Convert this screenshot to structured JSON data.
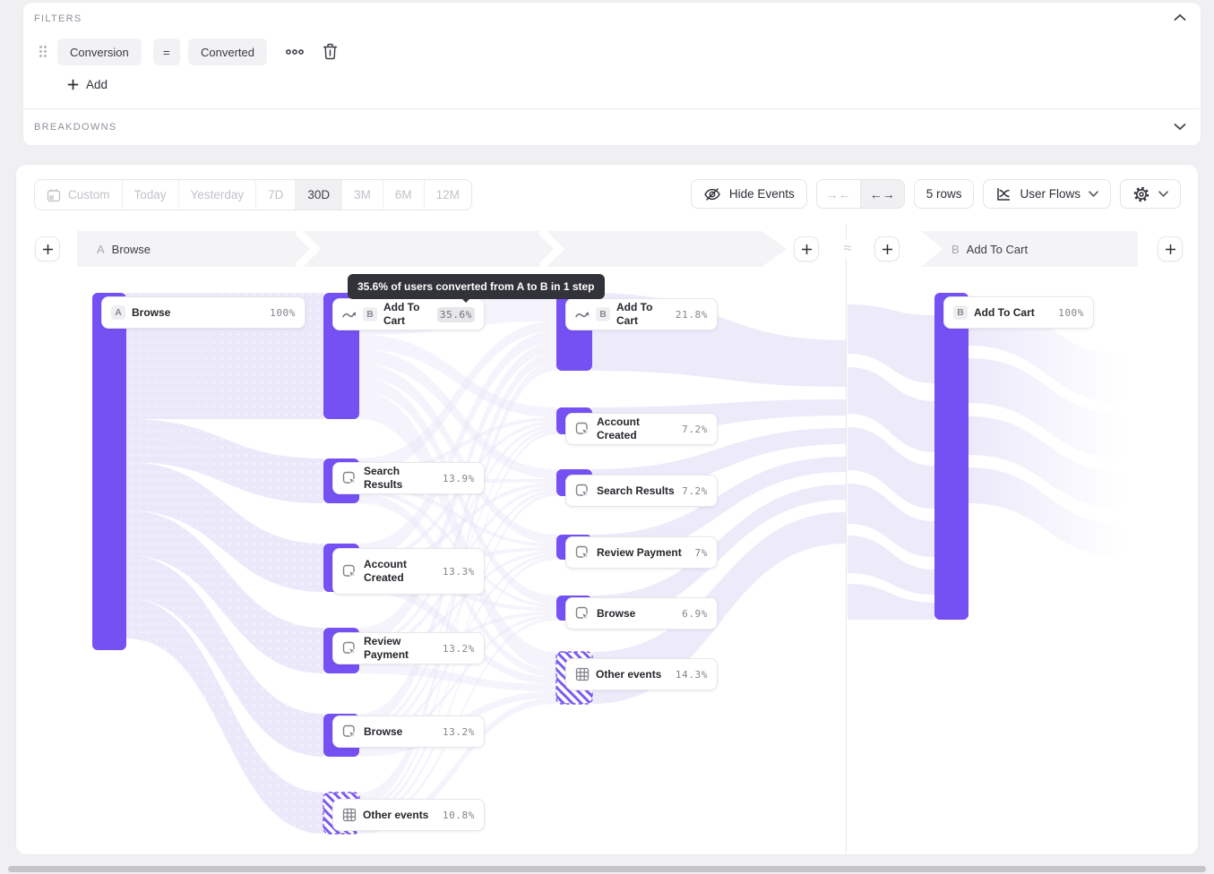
{
  "page": {
    "approx_symbol": "≈"
  },
  "filters": {
    "label": "FILTERS",
    "property": "Conversion",
    "operator": "=",
    "value": "Converted",
    "add_label": "Add"
  },
  "breakdowns": {
    "label": "BREAKDOWNS"
  },
  "toolbar": {
    "date_ranges": [
      "Custom",
      "Today",
      "Yesterday",
      "7D",
      "30D",
      "3M",
      "6M",
      "12M"
    ],
    "selected_range": "30D",
    "hide_events": "Hide Events",
    "rows": "5 rows",
    "view": "User Flows"
  },
  "chart_data": {
    "type": "sankey",
    "tooltip": "35.6% of users converted from A to B in 1 step",
    "accent_color": "#7550F3",
    "link_color": "#EBE8FA",
    "panes": [
      {
        "header": {
          "prefix": "A",
          "label": "Browse"
        },
        "columns": [
          {
            "nodes": [
              {
                "badge": "A",
                "label": "Browse",
                "value": "100%"
              }
            ]
          },
          {
            "nodes": [
              {
                "icon": "conversion",
                "badge": "B",
                "label": "Add To Cart",
                "value": "35.6%",
                "highlight": true
              },
              {
                "icon": "event",
                "label": "Search Results",
                "value": "13.9%"
              },
              {
                "icon": "event",
                "label": "Account Created",
                "value": "13.3%"
              },
              {
                "icon": "event",
                "label": "Review Payment",
                "value": "13.2%"
              },
              {
                "icon": "event",
                "label": "Browse",
                "value": "13.2%"
              },
              {
                "icon": "grid",
                "label": "Other events",
                "value": "10.8%",
                "hatched": true
              }
            ]
          },
          {
            "nodes": [
              {
                "icon": "conversion",
                "badge": "B",
                "label": "Add To Cart",
                "value": "21.8%"
              },
              {
                "icon": "event",
                "label": "Account Created",
                "value": "7.2%"
              },
              {
                "icon": "event",
                "label": "Search Results",
                "value": "7.2%"
              },
              {
                "icon": "event",
                "label": "Review Payment",
                "value": "7%"
              },
              {
                "icon": "event",
                "label": "Browse",
                "value": "6.9%"
              },
              {
                "icon": "grid",
                "label": "Other events",
                "value": "14.3%",
                "hatched": true
              }
            ]
          }
        ]
      },
      {
        "header": {
          "prefix": "B",
          "label": "Add To Cart"
        },
        "columns": [
          {
            "nodes": [
              {
                "badge": "B",
                "label": "Add To Cart",
                "value": "100%"
              }
            ]
          }
        ]
      }
    ]
  }
}
